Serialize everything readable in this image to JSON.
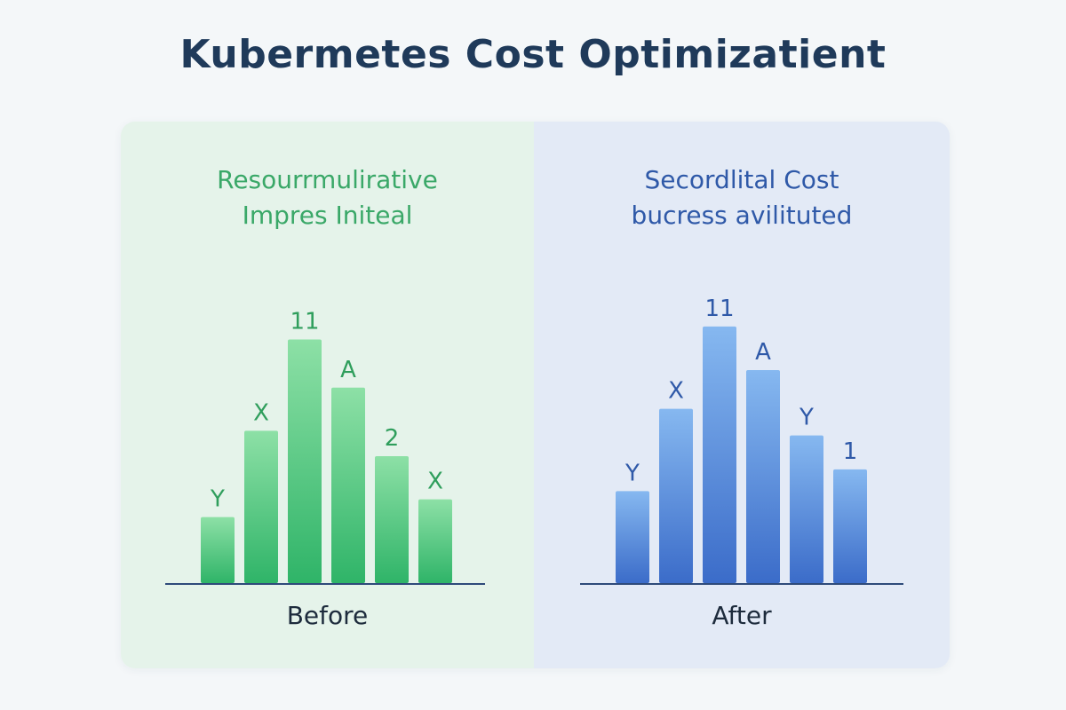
{
  "page": {
    "title": "Kubermetes Cost Optimizatient"
  },
  "colors": {
    "left_panel_bg": "#e5f3ea",
    "right_panel_bg": "#e3eaf6",
    "green_accent": "#3aa868",
    "blue_accent": "#2f59a8",
    "baseline": "#2e4a7a"
  },
  "chart_data": [
    {
      "type": "bar",
      "title": "Resourrmulirative Impres Initeal",
      "title_lines": [
        "Resourrmulirative",
        "Impres Initeal"
      ],
      "xlabel": "Before",
      "categories": [
        "Y",
        "X",
        "11",
        "A",
        "2",
        "X"
      ],
      "values": [
        2.6,
        6.0,
        9.6,
        7.7,
        5.0,
        3.3
      ],
      "ylim": [
        0,
        10
      ],
      "grid": false,
      "colors": {
        "top": "#8de0a6",
        "bottom": "#2fb468",
        "label": "#2f9e5c"
      }
    },
    {
      "type": "bar",
      "title": "Secordlital Cost bucress avilituted",
      "title_lines": [
        "Secordlital Cost",
        "bucress avilituted"
      ],
      "xlabel": "After",
      "categories": [
        "Y",
        "X",
        "11",
        "A",
        "Y",
        "1"
      ],
      "values": [
        3.8,
        7.2,
        10.6,
        8.8,
        6.1,
        4.7
      ],
      "ylim": [
        0,
        11
      ],
      "grid": false,
      "colors": {
        "top": "#86b8f0",
        "bottom": "#3b6cc9",
        "label": "#2f59a8"
      }
    }
  ]
}
